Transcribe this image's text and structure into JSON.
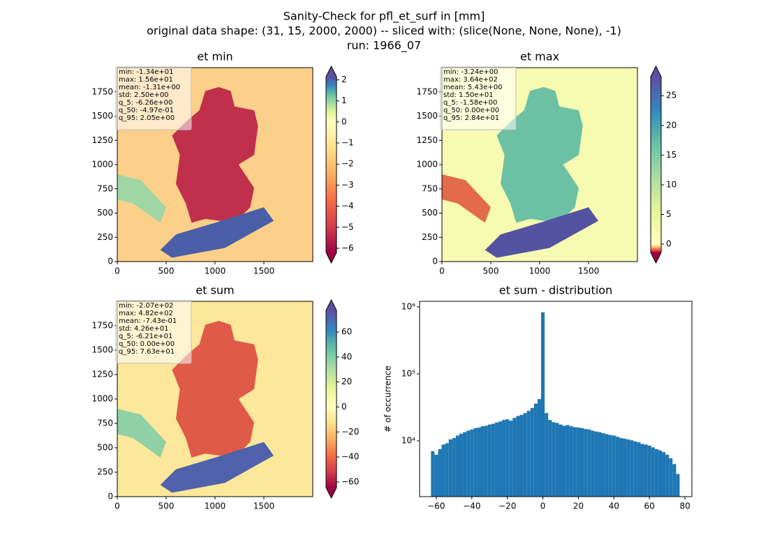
{
  "suptitle": [
    "Sanity-Check for pfl_et_surf in [mm]",
    "original data shape: (31, 15, 2000, 2000) -- sliced with: (slice(None, None, None), -1)",
    "run: 1966_07"
  ],
  "chart_data": [
    {
      "type": "heatmap",
      "title": "et min",
      "stats": [
        "min: -1.34e+01",
        "max: 1.56e+01",
        "mean: -1.31e+00",
        "std: 2.50e+00",
        "q_5: -6.26e+00",
        "q_50: -4.97e-01",
        "q_95: 2.05e+00"
      ],
      "xlim": [
        0,
        2000
      ],
      "ylim": [
        0,
        2000
      ],
      "xticks": [
        0,
        500,
        1000,
        1500
      ],
      "yticks": [
        0,
        250,
        500,
        750,
        1000,
        1250,
        1500,
        1750
      ],
      "colorbar": {
        "cmap": "Spectral",
        "center": 0,
        "extend": "both",
        "lim": [
          -6.2,
          2.15
        ],
        "ticks": [
          {
            "value": -6,
            "label": "−6"
          },
          {
            "value": -5,
            "label": "−5"
          },
          {
            "value": -4,
            "label": "−4"
          },
          {
            "value": -3,
            "label": "−3"
          },
          {
            "value": -2,
            "label": "−2"
          },
          {
            "value": -1,
            "label": "−1"
          },
          0,
          1,
          2
        ]
      }
    },
    {
      "type": "heatmap",
      "title": "et max",
      "stats": [
        "min: -3.24e+00",
        "max: 3.64e+02",
        "mean: 5.43e+00",
        "std: 1.50e+01",
        "q_5: -1.58e+00",
        "q_50: 0.00e+00",
        "q_95: 2.84e+01"
      ],
      "xlim": [
        0,
        2000
      ],
      "ylim": [
        0,
        2000
      ],
      "xticks": [
        0,
        500,
        1000,
        1500
      ],
      "yticks": [
        0,
        250,
        500,
        750,
        1000,
        1250,
        1500,
        1750
      ],
      "colorbar": {
        "cmap": "Spectral",
        "center": 0,
        "extend": "both",
        "lim": [
          -1.4,
          28.2
        ],
        "ticks": [
          0,
          5,
          10,
          15,
          20,
          25
        ]
      }
    },
    {
      "type": "heatmap",
      "title": "et sum",
      "stats": [
        "min: -2.07e+02",
        "max: 4.82e+02",
        "mean: -7.43e-01",
        "std: 4.26e+01",
        "q_5: -6.21e+01",
        "q_50: 0.00e+00",
        "q_95: 7.63e+01"
      ],
      "xlim": [
        0,
        2000
      ],
      "ylim": [
        0,
        2000
      ],
      "xticks": [
        0,
        500,
        1000,
        1500
      ],
      "yticks": [
        0,
        250,
        500,
        750,
        1000,
        1250,
        1500,
        1750
      ],
      "colorbar": {
        "cmap": "Spectral",
        "center": 0,
        "extend": "both",
        "lim": [
          -64.5,
          77.3
        ],
        "ticks": [
          {
            "value": -60,
            "label": "−60"
          },
          {
            "value": -40,
            "label": "−40"
          },
          {
            "value": -20,
            "label": "−20"
          },
          0,
          20,
          40,
          60
        ]
      }
    },
    {
      "type": "histogram",
      "title": "et sum - distribution",
      "ylabel": "# of occurrence",
      "color": "#1f77b4",
      "log_y": true,
      "bins": [
        -63,
        -61,
        -59,
        -57,
        -55,
        -53,
        -51,
        -49,
        -47,
        -45,
        -43,
        -41,
        -39,
        -37,
        -35,
        -33,
        -31,
        -29,
        -27,
        -25,
        -23,
        -21,
        -19,
        -17,
        -15,
        -13,
        -11,
        -9,
        -7,
        -5,
        -3,
        -1,
        1,
        3,
        5,
        7,
        9,
        11,
        13,
        15,
        17,
        19,
        21,
        23,
        25,
        27,
        29,
        31,
        33,
        35,
        37,
        39,
        41,
        43,
        45,
        47,
        49,
        51,
        53,
        55,
        57,
        59,
        61,
        63,
        65,
        67,
        69,
        71,
        73,
        75,
        77
      ],
      "counts": [
        7000,
        6200,
        7500,
        8800,
        9200,
        10500,
        11000,
        12000,
        12800,
        13500,
        14200,
        14800,
        15500,
        15800,
        16500,
        16800,
        17500,
        18000,
        18800,
        19500,
        20500,
        21000,
        20000,
        22000,
        23500,
        24500,
        26000,
        28000,
        31000,
        36000,
        42000,
        830000,
        26000,
        20500,
        19000,
        18500,
        17500,
        16800,
        17200,
        16500,
        16000,
        15800,
        15500,
        15000,
        14800,
        14200,
        13800,
        13500,
        13000,
        12600,
        12200,
        12000,
        11500,
        11000,
        10800,
        10500,
        10200,
        9800,
        9500,
        9000,
        8800,
        8500,
        8000,
        7500,
        7200,
        6800,
        6200,
        5500,
        4500,
        3200
      ],
      "xlim": [
        -69.4,
        83.9
      ],
      "ylim": [
        1470,
        1210000
      ],
      "xticks": [
        {
          "value": -60,
          "label": "−60"
        },
        {
          "value": -40,
          "label": "−40"
        },
        {
          "value": -20,
          "label": "−20"
        },
        0,
        20,
        40,
        60,
        80
      ],
      "yticks": [
        {
          "value": 10000,
          "label": "10⁴"
        },
        {
          "value": 100000,
          "label": "10⁵"
        },
        {
          "value": 1000000,
          "label": "10⁶"
        }
      ]
    }
  ]
}
